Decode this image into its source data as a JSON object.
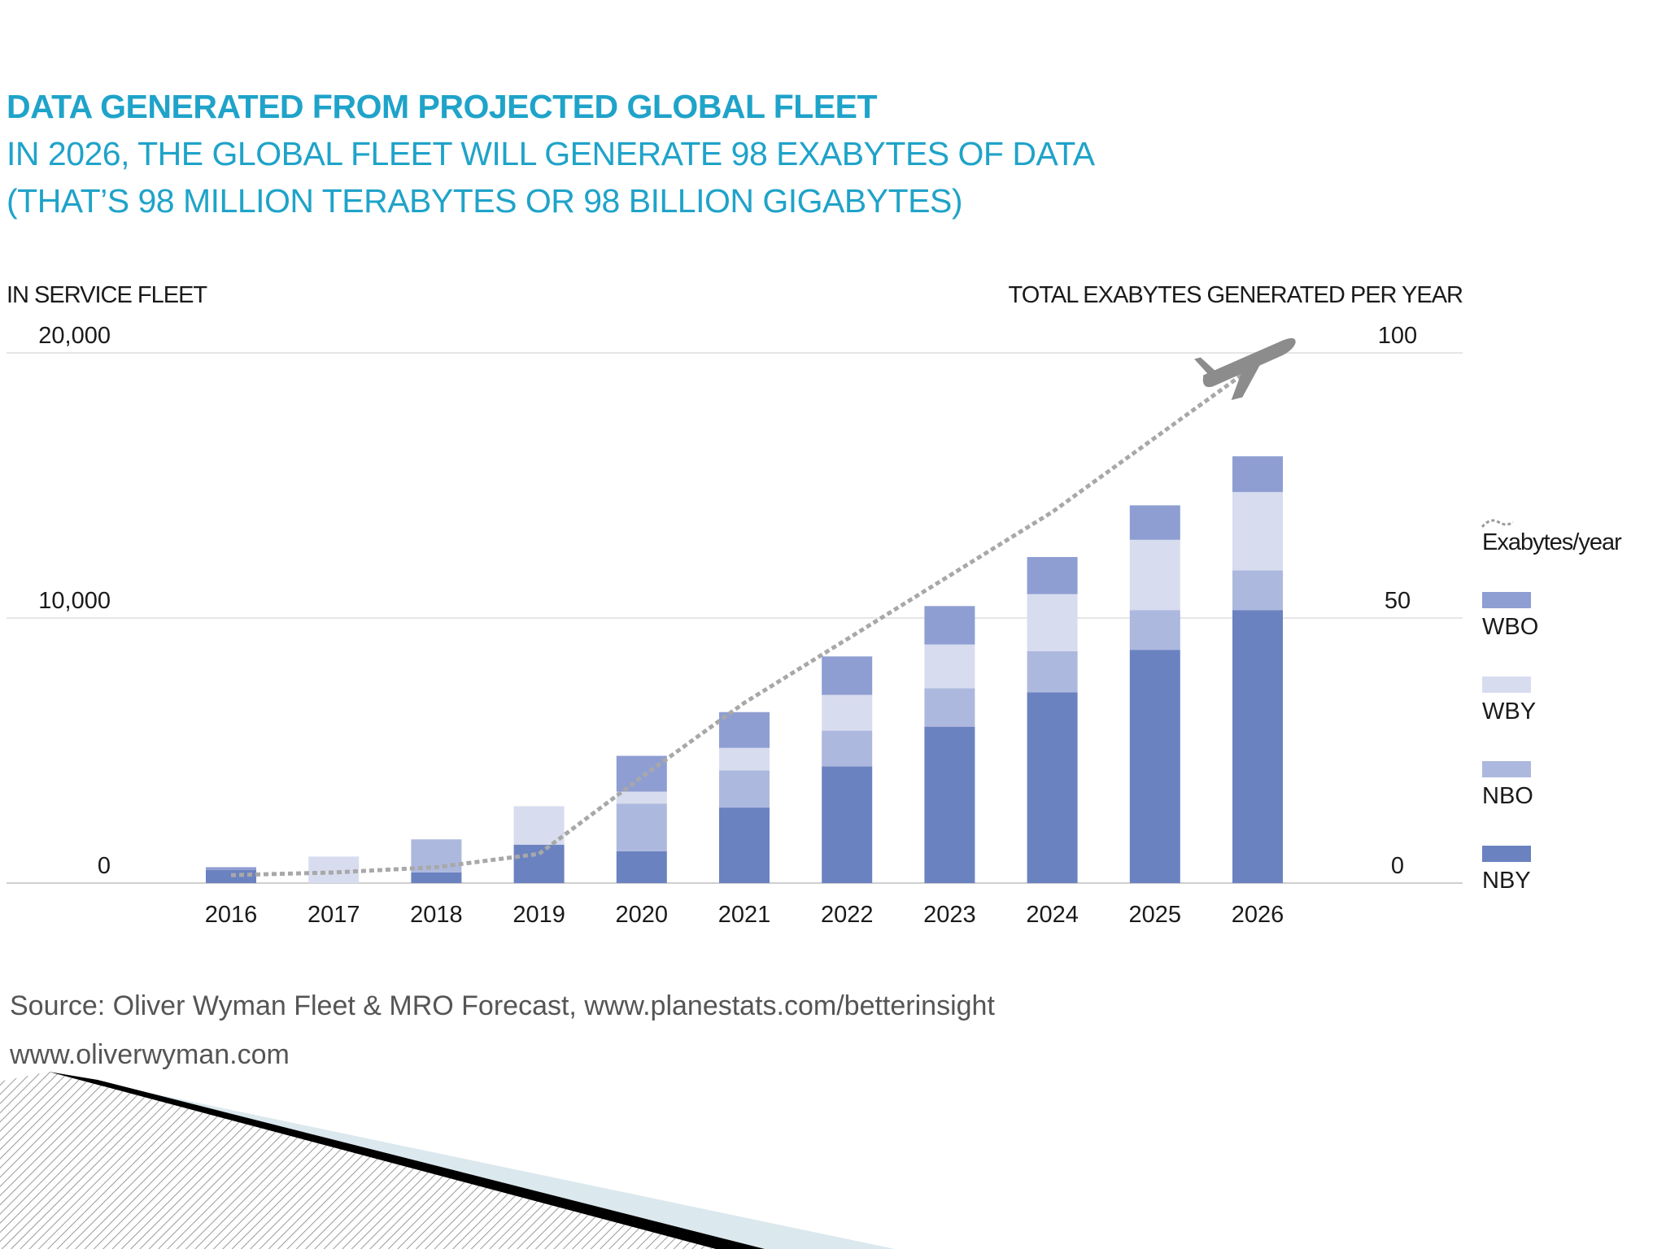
{
  "header": {
    "title": "DATA GENERATED FROM PROJECTED GLOBAL FLEET",
    "subtitle_line1": "IN 2026, THE GLOBAL FLEET WILL GENERATE 98 EXABYTES OF DATA",
    "subtitle_line2": "(THAT’S 98 MILLION TERABYTES OR 98 BILLION GIGABYTES)"
  },
  "footer": {
    "source": "Source: Oliver Wyman Fleet & MRO Forecast, www.planestats.com/betterinsight",
    "website": "www.oliverwyman.com"
  },
  "colors": {
    "title": "#1fa3c9",
    "NBY": "#6b82c0",
    "NBO": "#adb8de",
    "WBY": "#d8dcef",
    "WBO": "#8e9ed2",
    "line": "#a8a8a8",
    "plane": "#8c8c8c"
  },
  "chart_data": {
    "type": "bar",
    "stacked": true,
    "title": "DATA GENERATED FROM PROJECTED GLOBAL FLEET",
    "left_axis_label": "IN SERVICE FLEET",
    "right_axis_label": "TOTAL EXABYTES GENERATED PER YEAR",
    "left_ylim": [
      0,
      20000
    ],
    "right_ylim": [
      0,
      100
    ],
    "left_ticks": [
      "20,000",
      "10,000",
      "0"
    ],
    "right_ticks": [
      "100",
      "50",
      "0"
    ],
    "categories": [
      "2016",
      "2017",
      "2018",
      "2019",
      "2020",
      "2021",
      "2022",
      "2023",
      "2024",
      "2025",
      "2026"
    ],
    "series": [
      {
        "name": "NBY",
        "values": [
          500,
          0,
          400,
          1450,
          1200,
          2850,
          4400,
          5900,
          7200,
          8800,
          10300
        ]
      },
      {
        "name": "NBO",
        "values": [
          0,
          0,
          1250,
          0,
          1800,
          1400,
          1350,
          1450,
          1550,
          1500,
          1500
        ]
      },
      {
        "name": "WBY",
        "values": [
          0,
          1000,
          0,
          1450,
          450,
          850,
          1350,
          1650,
          2150,
          2650,
          2950
        ]
      },
      {
        "name": "WBO",
        "values": [
          100,
          0,
          0,
          0,
          1350,
          1350,
          1450,
          1450,
          1400,
          1300,
          1350
        ]
      }
    ],
    "line_series": {
      "name": "Exabytes/year",
      "axis": "right",
      "values": [
        1.5,
        2,
        3,
        5.5,
        20,
        34,
        46,
        58,
        70,
        84,
        98
      ]
    },
    "legend": [
      "Exabytes/year",
      "WBO",
      "WBY",
      "NBO",
      "NBY"
    ],
    "legend_position": "right"
  }
}
